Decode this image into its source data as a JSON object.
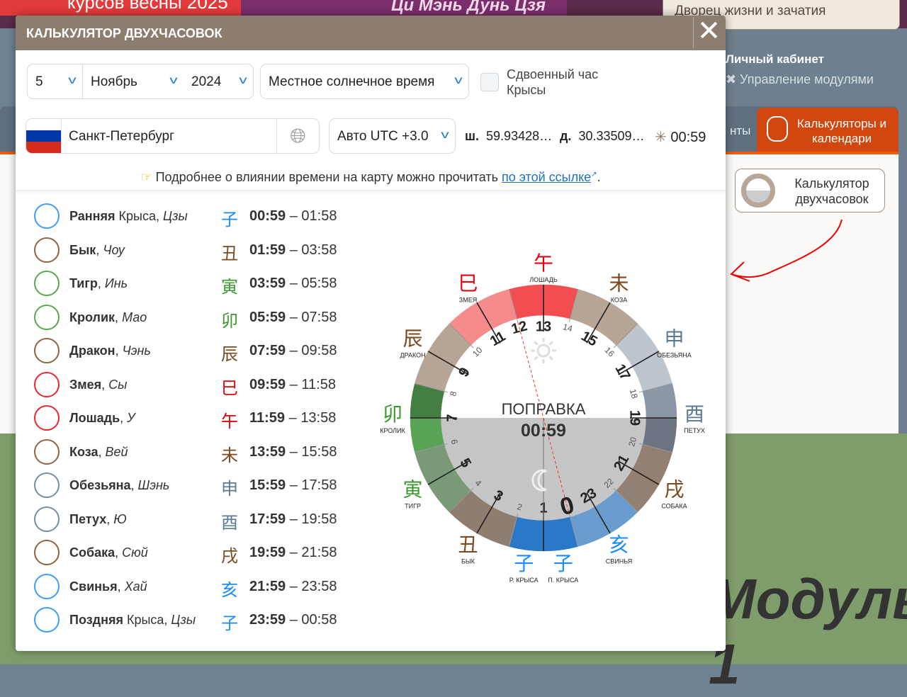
{
  "background": {
    "banner_left": "курсов весны 2025",
    "banner_mid": "Ци Мэнь Дунь Цзя",
    "palace": "Дворец жизни и зачатия",
    "cabinet": "Личный кабинет",
    "modules": "Управление модулями",
    "tab_partial": "нты",
    "tab_active": "Калькуляторы и календари",
    "calc_button": "Калькулятор двухчасовок",
    "module_text": "Модуль 1"
  },
  "modal": {
    "title": "КАЛЬКУЛЯТОР ДВУХЧАСОВОК",
    "close": "✕",
    "day": "5",
    "month": "Ноябрь",
    "year": "2024",
    "time_type": "Местное солнечное время",
    "double_rat_label": "Сдвоенный час Крысы",
    "double_rat_checked": false,
    "city": "Санкт-Петербург",
    "timezone": "Авто UTC +3.0",
    "lat_label": "ш.",
    "lat": "59.93428…",
    "lon_label": "д.",
    "lon": "30.33509…",
    "correction_time": "00:59",
    "info_text": "Подробнее о влиянии времени на карту можно прочитать",
    "info_link": "по этой ссылке",
    "info_end": "."
  },
  "hours": [
    {
      "bold": "Ранняя",
      "plain": " Крыса, ",
      "italic": "Цзы",
      "char": "子",
      "start": "00:59",
      "end": "01:58",
      "color": "#1a8cff"
    },
    {
      "bold": "Бык",
      "plain": ", ",
      "italic": "Чоу",
      "char": "丑",
      "start": "01:59",
      "end": "03:58",
      "color": "#7a4a1e"
    },
    {
      "bold": "Тигр",
      "plain": ", ",
      "italic": "Инь",
      "char": "寅",
      "start": "03:59",
      "end": "05:58",
      "color": "#3a9a2e"
    },
    {
      "bold": "Кролик",
      "plain": ", ",
      "italic": "Мао",
      "char": "卯",
      "start": "05:59",
      "end": "07:58",
      "color": "#3a9a2e"
    },
    {
      "bold": "Дракон",
      "plain": ", ",
      "italic": "Чэнь",
      "char": "辰",
      "start": "07:59",
      "end": "09:58",
      "color": "#7a4a1e"
    },
    {
      "bold": "Змея",
      "plain": ", ",
      "italic": "Сы",
      "char": "巳",
      "start": "09:59",
      "end": "11:58",
      "color": "#e8000b"
    },
    {
      "bold": "Лошадь",
      "plain": ", ",
      "italic": "У",
      "char": "午",
      "start": "11:59",
      "end": "13:58",
      "color": "#e8000b"
    },
    {
      "bold": "Коза",
      "plain": ", ",
      "italic": "Вей",
      "char": "未",
      "start": "13:59",
      "end": "15:58",
      "color": "#7a4a1e"
    },
    {
      "bold": "Обезьяна",
      "plain": ", ",
      "italic": "Шэнь",
      "char": "申",
      "start": "15:59",
      "end": "17:58",
      "color": "#5d7a94"
    },
    {
      "bold": "Петух",
      "plain": ", ",
      "italic": "Ю",
      "char": "酉",
      "start": "17:59",
      "end": "19:58",
      "color": "#5d7a94"
    },
    {
      "bold": "Собака",
      "plain": ", ",
      "italic": "Сюй",
      "char": "戌",
      "start": "19:59",
      "end": "21:58",
      "color": "#7a4a1e"
    },
    {
      "bold": "Свинья",
      "plain": ", ",
      "italic": "Хай",
      "char": "亥",
      "start": "21:59",
      "end": "23:58",
      "color": "#1a8cff"
    },
    {
      "bold": "Поздняя",
      "plain": " Крыса, ",
      "italic": "Цзы",
      "char": "子",
      "start": "23:59",
      "end": "00:58",
      "color": "#1a8cff"
    }
  ],
  "wheel": {
    "center_title": "ПОПРАВКА",
    "center_value": "00:59",
    "segment_colors": [
      "#2a78c8",
      "#2a78c8",
      "#8e7e70",
      "#8e7e70",
      "#7a9a77",
      "#7a9a77",
      "#5aa457",
      "#457e42",
      "#b7a596",
      "#b7a596",
      "#f58b8b",
      "#f58b8b",
      "#f24d50",
      "#f24d50",
      "#b7a596",
      "#b7a596",
      "#bec5cd",
      "#bec5cd",
      "#8b97a5",
      "#6b7480",
      "#928072",
      "#928072",
      "#6a9dcf",
      "#6a9dcf"
    ],
    "branches": [
      {
        "char": "子",
        "name": "П. КРЫСА",
        "hour": 0.5,
        "color": "#1a8cff"
      },
      {
        "char": "子",
        "name": "Р. КРЫСА",
        "hour": 1.5,
        "color": "#1a8cff"
      },
      {
        "char": "丑",
        "name": "БЫК",
        "hour": 3,
        "color": "#7a4a1e"
      },
      {
        "char": "寅",
        "name": "ТИГР",
        "hour": 5,
        "color": "#3a9a2e"
      },
      {
        "char": "卯",
        "name": "КРОЛИК",
        "hour": 7,
        "color": "#3a9a2e"
      },
      {
        "char": "辰",
        "name": "ДРАКОН",
        "hour": 9,
        "color": "#7a4a1e"
      },
      {
        "char": "巳",
        "name": "ЗМЕЯ",
        "hour": 11,
        "color": "#e8000b"
      },
      {
        "char": "午",
        "name": "ЛОШАДЬ",
        "hour": 13,
        "color": "#e8000b"
      },
      {
        "char": "未",
        "name": "КОЗА",
        "hour": 15,
        "color": "#7a4a1e"
      },
      {
        "char": "申",
        "name": "ОБЕЗЬЯНА",
        "hour": 17,
        "color": "#5d7a94"
      },
      {
        "char": "酉",
        "name": "ПЕТУХ",
        "hour": 19,
        "color": "#5d7a94"
      },
      {
        "char": "戌",
        "name": "СОБАКА",
        "hour": 21,
        "color": "#7a4a1e"
      },
      {
        "char": "亥",
        "name": "СВИНЬЯ",
        "hour": 23,
        "color": "#1a8cff"
      }
    ]
  }
}
